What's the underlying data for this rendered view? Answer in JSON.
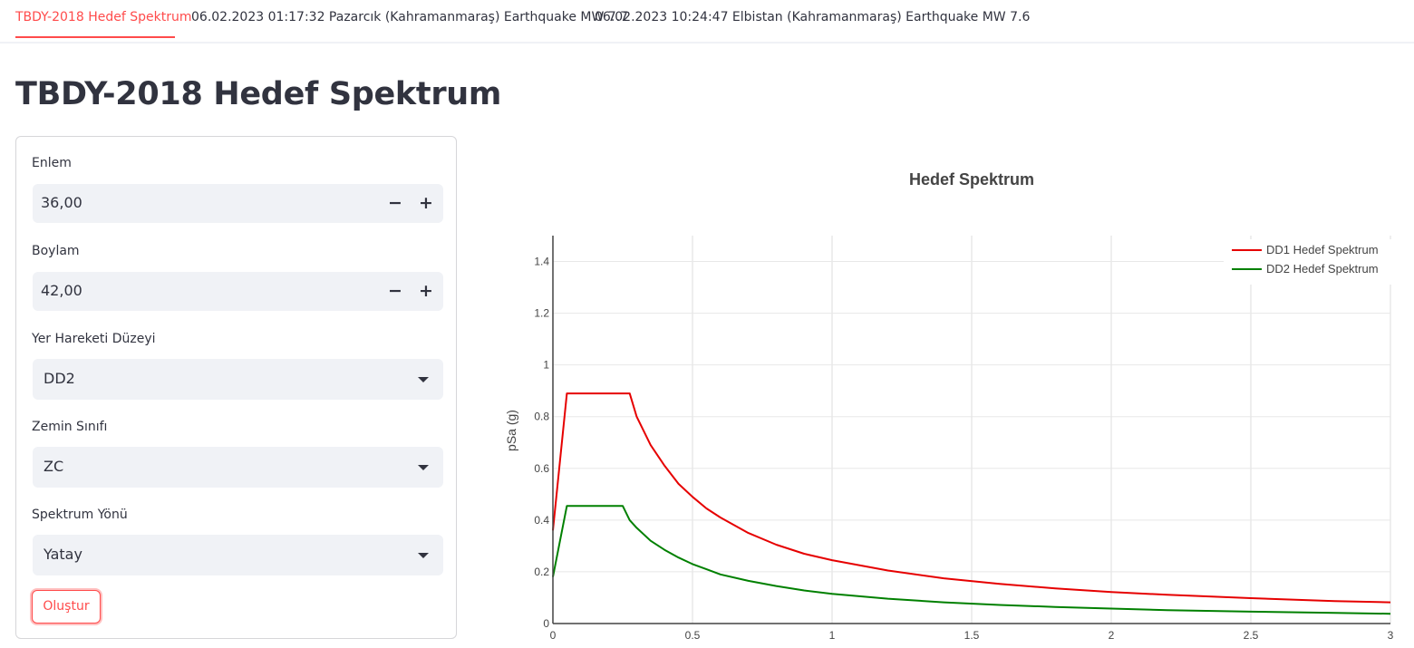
{
  "tabs": [
    {
      "label": "TBDY-2018 Hedef Spektrum",
      "active": true
    },
    {
      "label": "06.02.2023 01:17:32 Pazarcık (Kahramanmaraş) Earthquake MW 7.7",
      "active": false
    },
    {
      "label": "06.02.2023 10:24:47 Elbistan (Kahramanmaraş) Earthquake MW 7.6",
      "active": false
    }
  ],
  "page_title": "TBDY-2018 Hedef Spektrum",
  "form": {
    "lat": {
      "label": "Enlem",
      "value": "36,00",
      "minus": "−",
      "plus": "+"
    },
    "lon": {
      "label": "Boylam",
      "value": "42,00",
      "minus": "−",
      "plus": "+"
    },
    "ground_motion": {
      "label": "Yer Hareketi Düzeyi",
      "value": "DD2"
    },
    "soil_class": {
      "label": "Zemin Sınıfı",
      "value": "ZC"
    },
    "direction": {
      "label": "Spektrum Yönü",
      "value": "Yatay"
    },
    "submit_label": "Oluştur"
  },
  "colors": {
    "accent": "#ff4b4b",
    "dd1": "#e60000",
    "dd2": "#008000"
  },
  "chart_data": {
    "type": "line",
    "title": "Hedef Spektrum",
    "xlabel": "",
    "ylabel": "pSa (g)",
    "xlim": [
      0,
      3
    ],
    "ylim": [
      0,
      1.5
    ],
    "xticks": [
      "0",
      "0.5",
      "1",
      "1.5",
      "2",
      "2.5",
      "3"
    ],
    "xtick_values": [
      0,
      0.5,
      1,
      1.5,
      2,
      2.5,
      3
    ],
    "yticks": [
      "0",
      "0.2",
      "0.4",
      "0.6",
      "0.8",
      "1",
      "1.2",
      "1.4"
    ],
    "ytick_values": [
      0,
      0.2,
      0.4,
      0.6,
      0.8,
      1,
      1.2,
      1.4
    ],
    "legend": "top-right",
    "grid": true,
    "series": [
      {
        "name": "DD1 Hedef Spektrum",
        "color": "#e60000",
        "x": [
          0,
          0.05,
          0.1,
          0.15,
          0.2,
          0.25,
          0.275,
          0.3,
          0.35,
          0.4,
          0.45,
          0.5,
          0.55,
          0.6,
          0.7,
          0.8,
          0.9,
          1.0,
          1.2,
          1.4,
          1.6,
          1.8,
          2.0,
          2.2,
          2.5,
          2.8,
          3.0
        ],
        "y": [
          0.36,
          0.89,
          0.89,
          0.89,
          0.89,
          0.89,
          0.89,
          0.8,
          0.69,
          0.61,
          0.54,
          0.49,
          0.445,
          0.41,
          0.35,
          0.305,
          0.27,
          0.245,
          0.205,
          0.175,
          0.153,
          0.136,
          0.122,
          0.111,
          0.098,
          0.087,
          0.082
        ]
      },
      {
        "name": "DD2 Hedef Spektrum",
        "color": "#008000",
        "x": [
          0,
          0.05,
          0.1,
          0.15,
          0.2,
          0.25,
          0.275,
          0.3,
          0.35,
          0.4,
          0.45,
          0.5,
          0.55,
          0.6,
          0.7,
          0.8,
          0.9,
          1.0,
          1.2,
          1.4,
          1.6,
          1.8,
          2.0,
          2.2,
          2.5,
          2.8,
          3.0
        ],
        "y": [
          0.18,
          0.455,
          0.455,
          0.455,
          0.455,
          0.455,
          0.4,
          0.37,
          0.32,
          0.285,
          0.255,
          0.23,
          0.21,
          0.19,
          0.165,
          0.145,
          0.128,
          0.115,
          0.096,
          0.082,
          0.072,
          0.064,
          0.058,
          0.052,
          0.046,
          0.041,
          0.038
        ]
      }
    ]
  }
}
